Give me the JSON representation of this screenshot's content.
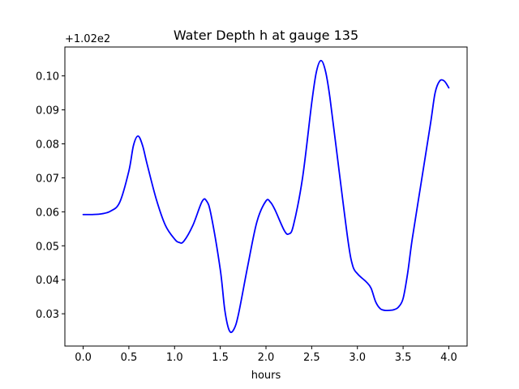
{
  "chart_data": {
    "type": "line",
    "title": "Water Depth h at gauge 135",
    "xlabel": "hours",
    "ylabel": "",
    "offset_label": "+1.02e2",
    "xlim": [
      -0.2,
      4.2
    ],
    "ylim": [
      0.0205,
      0.1085
    ],
    "xticks": [
      0.0,
      0.5,
      1.0,
      1.5,
      2.0,
      2.5,
      3.0,
      3.5,
      4.0
    ],
    "xtick_labels": [
      "0.0",
      "0.5",
      "1.0",
      "1.5",
      "2.0",
      "2.5",
      "3.0",
      "3.5",
      "4.0"
    ],
    "yticks": [
      0.03,
      0.04,
      0.05,
      0.06,
      0.07,
      0.08,
      0.09,
      0.1
    ],
    "ytick_labels": [
      "0.03",
      "0.04",
      "0.05",
      "0.06",
      "0.07",
      "0.08",
      "0.09",
      "0.10"
    ],
    "grid": false,
    "series": [
      {
        "color": "#0000ff",
        "x": [
          0.0,
          0.1,
          0.2,
          0.3,
          0.4,
          0.5,
          0.55,
          0.6,
          0.65,
          0.7,
          0.8,
          0.9,
          1.0,
          1.05,
          1.1,
          1.2,
          1.3,
          1.35,
          1.4,
          1.5,
          1.55,
          1.6,
          1.65,
          1.7,
          1.8,
          1.9,
          2.0,
          2.05,
          2.1,
          2.2,
          2.25,
          2.3,
          2.4,
          2.5,
          2.55,
          2.6,
          2.65,
          2.7,
          2.8,
          2.9,
          2.95,
          3.0,
          3.05,
          3.1,
          3.15,
          3.2,
          3.25,
          3.3,
          3.35,
          3.4,
          3.45,
          3.5,
          3.55,
          3.6,
          3.7,
          3.8,
          3.85,
          3.9,
          3.95,
          4.0
        ],
        "y": [
          0.0592,
          0.0592,
          0.0594,
          0.0602,
          0.0628,
          0.072,
          0.0795,
          0.0823,
          0.0795,
          0.074,
          0.0637,
          0.056,
          0.052,
          0.051,
          0.0513,
          0.056,
          0.063,
          0.0632,
          0.059,
          0.043,
          0.031,
          0.025,
          0.0255,
          0.03,
          0.044,
          0.057,
          0.0632,
          0.0628,
          0.0605,
          0.0545,
          0.0535,
          0.056,
          0.07,
          0.092,
          0.101,
          0.1045,
          0.1015,
          0.0935,
          0.072,
          0.051,
          0.044,
          0.0418,
          0.0405,
          0.0393,
          0.0375,
          0.0335,
          0.0315,
          0.031,
          0.031,
          0.0312,
          0.032,
          0.0345,
          0.042,
          0.052,
          0.069,
          0.086,
          0.095,
          0.0985,
          0.0985,
          0.0965
        ]
      }
    ]
  }
}
